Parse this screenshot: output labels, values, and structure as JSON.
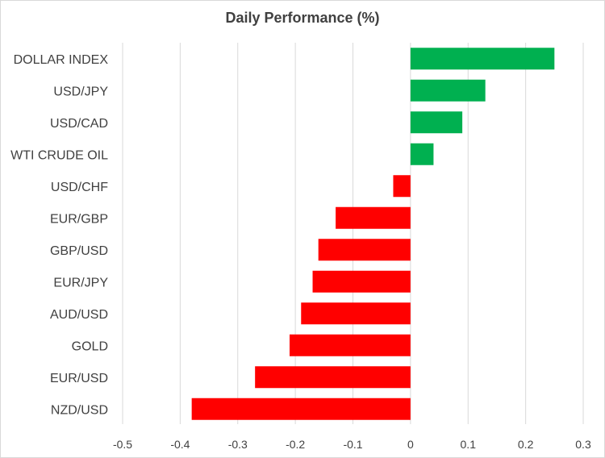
{
  "chart_data": {
    "type": "bar",
    "orientation": "horizontal",
    "title": "Daily Performance (%)",
    "xlabel": "",
    "ylabel": "",
    "categories": [
      "DOLLAR INDEX",
      "USD/JPY",
      "USD/CAD",
      "WTI CRUDE OIL",
      "USD/CHF",
      "EUR/GBP",
      "GBP/USD",
      "EUR/JPY",
      "AUD/USD",
      "GOLD",
      "EUR/USD",
      "NZD/USD"
    ],
    "values": [
      0.25,
      0.13,
      0.09,
      0.04,
      -0.03,
      -0.13,
      -0.16,
      -0.17,
      -0.19,
      -0.21,
      -0.27,
      -0.38
    ],
    "xlim": [
      -0.5,
      0.3
    ],
    "xticks": [
      -0.5,
      -0.4,
      -0.3,
      -0.2,
      -0.1,
      0,
      0.1,
      0.2,
      0.3
    ],
    "xtick_labels": [
      "-0.5",
      "-0.4",
      "-0.3",
      "-0.2",
      "-0.1",
      "0",
      "0.1",
      "0.2",
      "0.3"
    ],
    "grid": "vertical",
    "legend": "none",
    "colors": {
      "positive": "#00b050",
      "negative": "#ff0000",
      "grid": "#d9d9d9",
      "text": "#404040"
    }
  }
}
